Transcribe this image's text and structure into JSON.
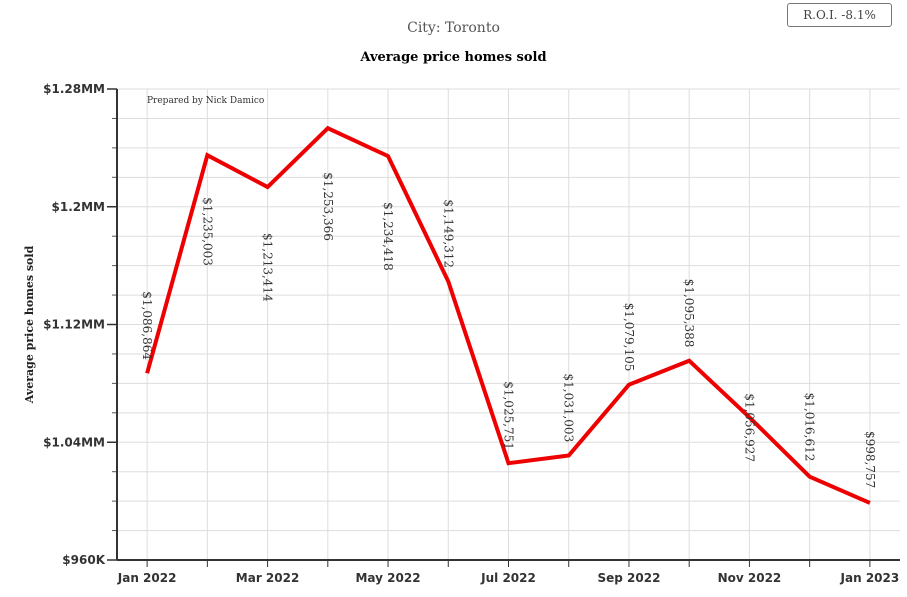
{
  "roi_badge": "R.O.I. -8.1%",
  "chart_data": {
    "type": "line",
    "subtitle": "City: Toronto",
    "title": "Average price homes sold",
    "ylabel": "Average price homes sold",
    "note": "Prepared by Nick Damico",
    "x": [
      "2022-01",
      "2022-02",
      "2022-03",
      "2022-04",
      "2022-05",
      "2022-06",
      "2022-07",
      "2022-08",
      "2022-09",
      "2022-10",
      "2022-11",
      "2022-12",
      "2023-01"
    ],
    "x_ticks": [
      "Jan 2022",
      "Mar 2022",
      "May 2022",
      "Jul 2022",
      "Sep 2022",
      "Nov 2022",
      "Jan 2023"
    ],
    "y_ticks": [
      "$960K",
      "$1.04MM",
      "$1.12MM",
      "$1.2MM",
      "$1.28MM"
    ],
    "ylim": [
      960000,
      1280000
    ],
    "series": [
      {
        "color": "#ee0000",
        "values": [
          1086864,
          1235003,
          1213414,
          1253366,
          1234418,
          1149312,
          1025751,
          1031003,
          1079105,
          1095388,
          1056927,
          1016612,
          998757
        ],
        "labels": [
          "$1,086,864",
          "$1,235,003",
          "$1,213,414",
          "$1,253,366",
          "$1,234,418",
          "$1,149,312",
          "$1,025,751",
          "$1,031,003",
          "$1,079,105",
          "$1,095,388",
          "$1,056,927",
          "$1,016,612",
          "$998,757"
        ]
      }
    ]
  }
}
